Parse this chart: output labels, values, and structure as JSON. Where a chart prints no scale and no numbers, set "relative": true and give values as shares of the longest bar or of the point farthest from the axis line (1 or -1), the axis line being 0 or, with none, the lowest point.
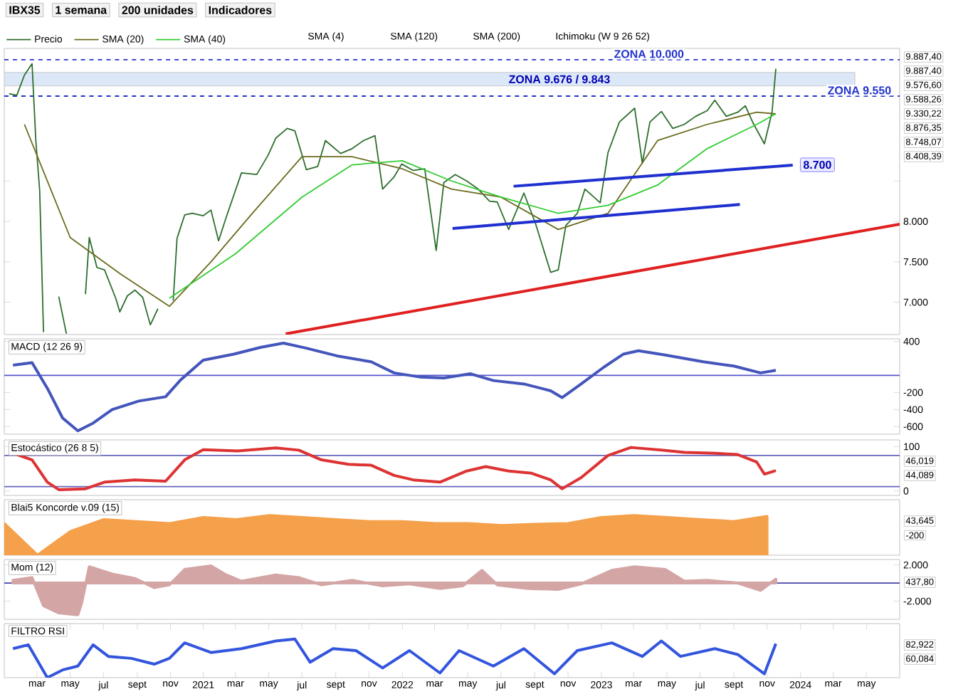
{
  "chart_data": [
    {
      "type": "line",
      "title": "IBX35",
      "legend": "top",
      "marker": "none",
      "tick_labels": "y",
      "annotations": [
        "1 semana",
        "200 unidades",
        "Indicadores",
        "SMA (4)",
        "SMA (120)",
        "SMA (200)",
        "Ichimoku (W 9 26 52)",
        "9.887,40",
        "9.887,40",
        "9.576,60",
        "9.588,26",
        "9.330,22",
        "8.876,35",
        "8.748,07",
        "8.408,39",
        {
          "text": "8.700",
          "x": "2024-02-01",
          "y": 8700
        }
      ],
      "xlim": [
        "2020-01-01",
        "2024-07-01"
      ],
      "ylim": [
        6600,
        10140
      ],
      "yticks": [
        {
          "value": 7000,
          "label": "7.000"
        },
        {
          "value": 7500,
          "label": "7.500"
        },
        {
          "value": 8000,
          "label": "8.000"
        },
        {
          "value": 8500,
          "label": null
        }
      ],
      "ref_lines": [
        {
          "axis": "y",
          "value": 10000,
          "label": "ZONA 10.000",
          "color": "#2233cc",
          "line_style": "dashed"
        },
        {
          "axis": "y",
          "value": 9550,
          "label": "ZONA 9.550",
          "color": "#2233cc",
          "line_style": "dashed"
        }
      ],
      "bands": [
        {
          "axis": "y",
          "from": 9676,
          "to": 9843,
          "label": "ZONA 9.676 / 9.843",
          "color": "#dce8f8"
        }
      ],
      "series": [
        {
          "name": "Precio",
          "color": "#2d6e2d",
          "x": [
            "2020-01-10",
            "2020-01-24",
            "2020-02-07",
            "2020-02-21",
            "2020-02-28",
            "2020-03-06",
            "2020-03-13",
            "2020-03-20",
            "2020-03-27",
            "2020-04-03",
            "2020-04-10",
            "2020-04-24",
            "2020-05-15",
            "2020-05-29",
            "2020-06-05",
            "2020-06-19",
            "2020-07-03",
            "2020-07-24",
            "2020-07-31",
            "2020-08-14",
            "2020-08-28",
            "2020-09-11",
            "2020-09-25",
            "2020-10-09",
            "2020-10-30",
            "2020-11-06",
            "2020-11-13",
            "2020-11-27",
            "2020-12-11",
            "2020-12-31",
            "2021-01-15",
            "2021-01-29",
            "2021-02-12",
            "2021-03-12",
            "2021-04-09",
            "2021-04-30",
            "2021-05-14",
            "2021-06-04",
            "2021-06-18",
            "2021-07-09",
            "2021-07-30",
            "2021-08-13",
            "2021-09-10",
            "2021-10-01",
            "2021-10-22",
            "2021-11-12",
            "2021-11-26",
            "2021-12-17",
            "2021-12-31",
            "2022-01-21",
            "2022-02-11",
            "2022-03-04",
            "2022-03-18",
            "2022-04-08",
            "2022-04-29",
            "2022-05-20",
            "2022-06-10",
            "2022-06-24",
            "2022-07-15",
            "2022-08-12",
            "2022-09-02",
            "2022-09-30",
            "2022-10-14",
            "2022-10-28",
            "2022-11-18",
            "2022-12-02",
            "2022-12-30",
            "2023-01-13",
            "2023-02-03",
            "2023-03-03",
            "2023-03-17",
            "2023-03-31",
            "2023-04-21",
            "2023-05-12",
            "2023-06-02",
            "2023-06-23",
            "2023-07-14",
            "2023-07-28",
            "2023-08-18",
            "2023-09-08",
            "2023-09-22",
            "2023-10-06",
            "2023-10-27",
            "2023-11-10",
            "2023-11-17"
          ],
          "values": [
            9580,
            9560,
            9810,
            9950,
            8990,
            8380,
            6630,
            null,
            null,
            null,
            7070,
            6610,
            null,
            7100,
            7800,
            7430,
            7400,
            7040,
            6880,
            7080,
            7150,
            7060,
            6720,
            6920,
            null,
            7020,
            7790,
            8080,
            8100,
            8070,
            8140,
            7760,
            8050,
            8600,
            8580,
            8820,
            9030,
            9150,
            9120,
            8640,
            8680,
            9000,
            8840,
            8900,
            9000,
            9060,
            8400,
            8550,
            8710,
            8630,
            8650,
            7640,
            8480,
            8580,
            8500,
            8400,
            8250,
            8240,
            7900,
            8350,
            7980,
            7370,
            7400,
            7950,
            8100,
            8400,
            8230,
            8850,
            9230,
            9400,
            8720,
            9230,
            9360,
            9150,
            9200,
            9300,
            9370,
            9500,
            9300,
            9350,
            9430,
            9220,
            8960,
            9350,
            9887.4
          ]
        },
        {
          "name": "SMA (20)",
          "color": "#6b6b1f",
          "x": [
            "2020-02-07",
            "2020-05-01",
            "2020-08-01",
            "2020-10-30",
            "2021-01-15",
            "2021-04-01",
            "2021-07-01",
            "2021-10-01",
            "2022-01-01",
            "2022-04-01",
            "2022-07-01",
            "2022-10-14",
            "2023-01-13",
            "2023-04-14",
            "2023-07-14",
            "2023-10-13",
            "2023-11-17"
          ],
          "values": [
            9200,
            7800,
            7350,
            6950,
            7500,
            8100,
            8800,
            8800,
            8650,
            8400,
            8300,
            7900,
            8100,
            9000,
            9200,
            9350,
            9330
          ]
        },
        {
          "name": "SMA (40)",
          "color": "#33cc33",
          "x": [
            "2020-10-30",
            "2021-03-01",
            "2021-07-01",
            "2021-10-01",
            "2022-01-01",
            "2022-04-01",
            "2022-07-01",
            "2022-10-14",
            "2023-01-13",
            "2023-04-14",
            "2023-07-14",
            "2023-10-13",
            "2023-11-17"
          ],
          "values": [
            7050,
            7600,
            8300,
            8700,
            8750,
            8500,
            8300,
            8100,
            8200,
            8450,
            8900,
            9200,
            9330
          ]
        },
        {
          "color": "#1f2fd0",
          "x": [
            "2022-07-24",
            "2023-12-18"
          ],
          "values": [
            8435,
            8696
          ]
        },
        {
          "color": "#1f2fd0",
          "x": [
            "2022-04-03",
            "2023-09-12"
          ],
          "values": [
            7913,
            8209
          ]
        },
        {
          "color": "#e02020",
          "x": [
            "2021-06-01",
            "2024-07-01"
          ],
          "values": [
            6609,
            7965
          ]
        }
      ]
    },
    {
      "type": "line",
      "title": "MACD (12 26 9)",
      "marker": "none",
      "tick_labels": "y",
      "xlim": [
        "2020-01-01",
        "2024-07-01"
      ],
      "ylim": [
        -690,
        430
      ],
      "yticks": [
        400,
        -200,
        -400,
        -600
      ],
      "ref_lines": [
        {
          "axis": "y",
          "value": 0,
          "color": "#5555cc"
        }
      ],
      "series": [
        {
          "color": "#4455bb",
          "x": [
            "2020-01-17",
            "2020-02-21",
            "2020-03-20",
            "2020-04-17",
            "2020-05-15",
            "2020-06-12",
            "2020-07-17",
            "2020-09-04",
            "2020-10-23",
            "2020-11-20",
            "2020-12-31",
            "2021-02-26",
            "2021-04-16",
            "2021-05-28",
            "2021-07-09",
            "2021-09-03",
            "2021-11-05",
            "2021-12-17",
            "2022-02-04",
            "2022-03-18",
            "2022-05-06",
            "2022-06-17",
            "2022-08-12",
            "2022-09-30",
            "2022-10-21",
            "2022-11-25",
            "2023-01-06",
            "2023-02-10",
            "2023-03-10",
            "2023-04-28",
            "2023-07-07",
            "2023-09-01",
            "2023-10-20",
            "2023-11-17"
          ],
          "values": [
            120,
            150,
            -150,
            -500,
            -650,
            -560,
            -400,
            -300,
            -250,
            -50,
            180,
            250,
            330,
            380,
            320,
            230,
            160,
            30,
            -20,
            -30,
            20,
            -60,
            -100,
            -180,
            -260,
            -100,
            100,
            250,
            290,
            240,
            160,
            110,
            30,
            60
          ]
        }
      ]
    },
    {
      "type": "line",
      "title": "Estocástico (26 8 5)",
      "marker": "none",
      "tick_labels": "y",
      "annotations": [
        "46,019",
        "44,089"
      ],
      "xlim": [
        "2020-01-01",
        "2024-07-01"
      ],
      "ylim": [
        -10,
        115
      ],
      "yticks": [
        0,
        100
      ],
      "ref_lines": [
        {
          "axis": "y",
          "value": 80,
          "color": "#6666bb"
        },
        {
          "axis": "y",
          "value": 10,
          "color": "#6666bb"
        }
      ],
      "series": [
        {
          "color": "#dd3333",
          "x": [
            "2020-01-17",
            "2020-02-21",
            "2020-03-20",
            "2020-04-10",
            "2020-05-29",
            "2020-07-03",
            "2020-08-28",
            "2020-10-23",
            "2020-11-27",
            "2020-12-31",
            "2021-03-05",
            "2021-05-14",
            "2021-06-25",
            "2021-08-06",
            "2021-09-24",
            "2021-11-05",
            "2021-12-17",
            "2022-01-21",
            "2022-03-11",
            "2022-04-29",
            "2022-06-03",
            "2022-07-15",
            "2022-08-26",
            "2022-09-30",
            "2022-10-21",
            "2022-11-25",
            "2023-01-13",
            "2023-02-24",
            "2023-04-21",
            "2023-06-02",
            "2023-07-28",
            "2023-09-08",
            "2023-10-13",
            "2023-10-27",
            "2023-11-17"
          ],
          "values": [
            85,
            70,
            20,
            3,
            5,
            20,
            25,
            22,
            70,
            93,
            90,
            97,
            92,
            70,
            60,
            58,
            35,
            25,
            20,
            45,
            55,
            45,
            40,
            25,
            5,
            30,
            80,
            98,
            92,
            87,
            85,
            82,
            65,
            38,
            46
          ]
        }
      ]
    },
    {
      "type": "area",
      "title": "Blai5 Koncorde v.09 (15)",
      "relative": true,
      "tick_labels": false,
      "marker": "none",
      "annotations": [
        "43,645",
        "-200"
      ],
      "categories": [
        null,
        null,
        null,
        null,
        null,
        null,
        null,
        null,
        null,
        null,
        null,
        null,
        null,
        null,
        null,
        null,
        null,
        null,
        null,
        null,
        null,
        null,
        null,
        null,
        null,
        null,
        null,
        null
      ],
      "series": [
        {
          "color": "#f5a04a",
          "values": [
            0.8,
            0,
            0.6,
            0.9,
            0.85,
            0.8,
            0.95,
            0.9,
            1,
            0.95,
            0.9,
            0.85,
            0.85,
            0.8,
            0.8,
            0.75,
            0.78,
            0.8,
            0.95,
            1,
            0.95,
            0.9,
            0.85,
            0.98,
            null,
            null,
            null,
            null
          ]
        }
      ]
    },
    {
      "type": "area",
      "title": "Mom (12)",
      "marker": "none",
      "tick_labels": "y",
      "annotations": [
        "437,80"
      ],
      "xlim": [
        "2020-01-01",
        "2024-07-01"
      ],
      "ylim": [
        -4000,
        2600
      ],
      "yticks": [
        {
          "value": 2000,
          "label": "2.000"
        },
        {
          "value": -2000,
          "label": "-2.000"
        }
      ],
      "ref_lines": [
        {
          "axis": "y",
          "value": 0,
          "color": "#4444aa"
        }
      ],
      "series": [
        {
          "color": "#d4a5a5",
          "x": [
            "2020-01-17",
            "2020-02-21",
            "2020-03-13",
            "2020-04-10",
            "2020-05-15",
            "2020-05-22",
            "2020-06-05",
            "2020-07-17",
            "2020-08-28",
            "2020-10-02",
            "2020-10-30",
            "2020-11-27",
            "2021-01-15",
            "2021-02-12",
            "2021-03-12",
            "2021-05-14",
            "2021-06-25",
            "2021-08-06",
            "2021-10-01",
            "2021-11-26",
            "2022-01-14",
            "2022-03-11",
            "2022-04-22",
            "2022-05-27",
            "2022-06-24",
            "2022-08-19",
            "2022-10-14",
            "2022-11-25",
            "2023-01-20",
            "2023-03-03",
            "2023-04-28",
            "2023-06-02",
            "2023-07-14",
            "2023-09-08",
            "2023-10-20",
            "2023-11-17"
          ],
          "values": [
            300,
            600,
            -2500,
            -3300,
            -3500,
            -2200,
            1800,
            1000,
            500,
            -500,
            -200,
            1500,
            1900,
            900,
            200,
            900,
            600,
            -200,
            300,
            -300,
            -100,
            -600,
            -300,
            1400,
            -200,
            -600,
            -700,
            -100,
            1400,
            1800,
            1500,
            200,
            300,
            0,
            -800,
            437.8
          ]
        }
      ]
    },
    {
      "type": "line",
      "title": "FILTRO RSI",
      "relative": true,
      "marker": "none",
      "tick_labels": "x",
      "annotations": [
        "82,922",
        "60,084"
      ],
      "xlim": [
        "2020-01-01",
        "2024-07-01"
      ],
      "xticks": [
        {
          "value": "2020-03",
          "label": "mar"
        },
        {
          "value": "2020-05",
          "label": "may"
        },
        {
          "value": "2020-07",
          "label": "jul"
        },
        {
          "value": "2020-09",
          "label": "sept"
        },
        {
          "value": "2020-11",
          "label": "nov"
        },
        {
          "value": "2021-01",
          "label": "2021"
        },
        {
          "value": "2021-03",
          "label": "mar"
        },
        {
          "value": "2021-05",
          "label": "may"
        },
        {
          "value": "2021-07",
          "label": "jul"
        },
        {
          "value": "2021-09",
          "label": "sept"
        },
        {
          "value": "2021-11",
          "label": "nov"
        },
        {
          "value": "2022-01",
          "label": "2022"
        },
        {
          "value": "2022-03",
          "label": "mar"
        },
        {
          "value": "2022-05",
          "label": "may"
        },
        {
          "value": "2022-07",
          "label": "jul"
        },
        {
          "value": "2022-09",
          "label": "sept"
        },
        {
          "value": "2022-11",
          "label": "nov"
        },
        {
          "value": "2023-01",
          "label": "2023"
        },
        {
          "value": "2023-03",
          "label": "mar"
        },
        {
          "value": "2023-05",
          "label": "may"
        },
        {
          "value": "2023-07",
          "label": "jul"
        },
        {
          "value": "2023-09",
          "label": "sept"
        },
        {
          "value": "2023-11",
          "label": "nov"
        },
        {
          "value": "2024-01",
          "label": "2024"
        },
        {
          "value": "2024-03",
          "label": "mar"
        },
        {
          "value": "2024-05",
          "label": "may"
        }
      ],
      "series": [
        {
          "color": "#3355dd",
          "x": [
            "2020-01-17",
            "2020-02-14",
            "2020-03-20",
            "2020-04-17",
            "2020-05-15",
            "2020-06-12",
            "2020-07-10",
            "2020-08-21",
            "2020-10-02",
            "2020-10-30",
            "2020-11-27",
            "2021-01-15",
            "2021-03-12",
            "2021-05-14",
            "2021-06-18",
            "2021-07-16",
            "2021-08-27",
            "2021-10-08",
            "2021-11-26",
            "2022-01-14",
            "2022-03-11",
            "2022-04-15",
            "2022-06-17",
            "2022-08-12",
            "2022-10-07",
            "2022-11-18",
            "2023-01-20",
            "2023-03-17",
            "2023-04-21",
            "2023-05-26",
            "2023-07-28",
            "2023-09-08",
            "2023-10-27",
            "2023-11-17"
          ],
          "values": [
            0.75,
            0.85,
            0,
            0.2,
            0.3,
            0.85,
            0.55,
            0.5,
            0.35,
            0.5,
            0.9,
            0.65,
            0.75,
            0.95,
            1,
            0.4,
            0.75,
            0.7,
            0.25,
            0.7,
            0.12,
            0.7,
            0.3,
            0.75,
            0.1,
            0.7,
            0.9,
            0.55,
            0.95,
            0.55,
            0.75,
            0.6,
            0.1,
            0.88
          ]
        }
      ]
    }
  ]
}
